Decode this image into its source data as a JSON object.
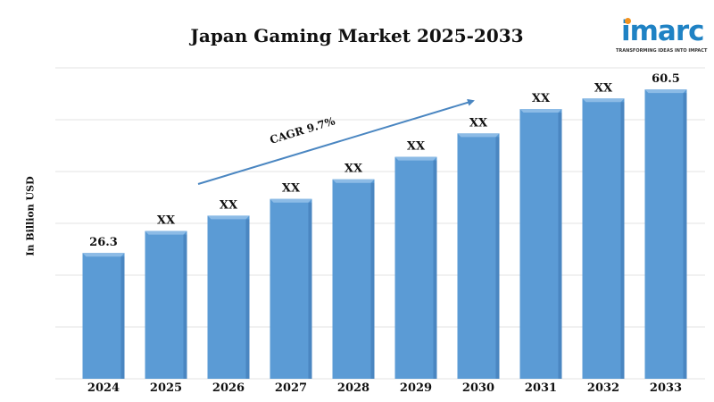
{
  "logo": {
    "word": "imarc",
    "tagline": "TRANSFORMING IDEAS INTO IMPACT"
  },
  "chart_data": {
    "type": "bar",
    "title": "Japan Gaming Market 2025-2033",
    "xlabel": "",
    "ylabel": "In Billion USD",
    "categories": [
      "2024",
      "2025",
      "2026",
      "2027",
      "2028",
      "2029",
      "2030",
      "2031",
      "2032",
      "2033"
    ],
    "values": [
      26.3,
      30.9,
      34.1,
      37.6,
      41.7,
      46.4,
      51.3,
      56.4,
      58.6,
      60.5
    ],
    "data_labels": [
      "26.3",
      "XX",
      "XX",
      "XX",
      "XX",
      "XX",
      "XX",
      "XX",
      "XX",
      "60.5"
    ],
    "ylim": [
      0,
      65
    ],
    "grid": true,
    "bar_color": "#5b9bd5",
    "annotation": {
      "text": "CAGR 9.7%",
      "arrow_color": "#4a86c1"
    }
  }
}
